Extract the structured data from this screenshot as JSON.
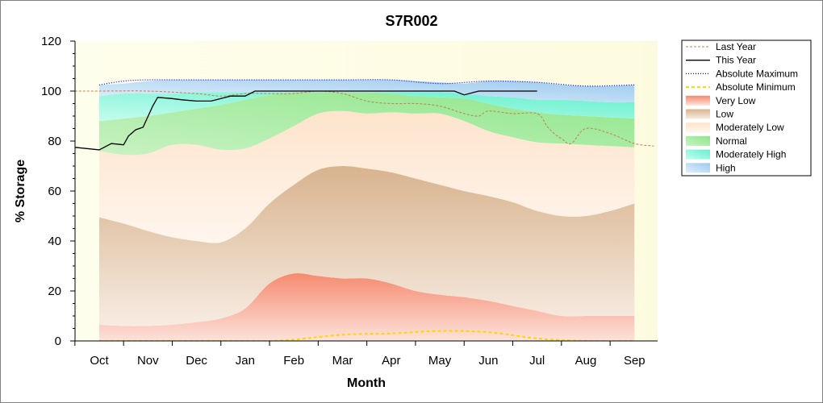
{
  "chart_data": {
    "type": "area",
    "title": "S7R002",
    "xlabel": "Month",
    "ylabel": "% Storage",
    "ylim": [
      0,
      120
    ],
    "yticks": [
      "0",
      "20",
      "40",
      "60",
      "80",
      "100",
      "120"
    ],
    "categories": [
      "Oct",
      "Nov",
      "Dec",
      "Jan",
      "Feb",
      "Mar",
      "Apr",
      "May",
      "Jun",
      "Jul",
      "Aug",
      "Sep"
    ],
    "grid": false,
    "legend_position": "right",
    "colors": {
      "very_low": "#f5856c",
      "low": "#d4b08c",
      "moderately_low": "#fde8d4",
      "normal": "#7ee07e",
      "moderately_high": "#66f2cc",
      "high": "#9cc8ee",
      "last_year": "#c0804f",
      "this_year": "#000000",
      "absolute_maximum": "#0000ff",
      "absolute_minimum": "#ffd700",
      "plot_bg": "#fdfde6"
    },
    "series": [
      {
        "name": "Last Year",
        "kind": "line",
        "style": "dashed",
        "x": [
          -0.5,
          0,
          1,
          2,
          2.5,
          3,
          3.5,
          4,
          4.5,
          5,
          5.5,
          6,
          6.5,
          7,
          7.5,
          7.8,
          8,
          8.5,
          9,
          9.2,
          9.35,
          9.5,
          9.7,
          10,
          10.5,
          11,
          11.4
        ],
        "values": [
          100,
          100,
          100,
          99,
          98,
          99,
          99,
          99,
          100,
          99,
          96,
          95,
          95,
          94,
          91,
          90,
          92,
          91,
          91,
          86,
          83,
          81,
          79,
          85,
          83,
          79,
          78
        ]
      },
      {
        "name": "This Year",
        "kind": "line",
        "style": "solid",
        "x": [
          -0.5,
          0,
          0.25,
          0.5,
          0.6,
          0.75,
          0.9,
          1.1,
          1.2,
          1.5,
          1.7,
          2,
          2.3,
          2.5,
          2.7,
          3,
          3.2,
          3.5,
          4,
          4.5,
          5,
          5.5,
          6,
          6.5,
          7,
          7.3,
          7.5,
          7.8,
          8,
          8.5,
          9
        ],
        "values": [
          77.5,
          76.5,
          79,
          78.5,
          82,
          84.5,
          85.5,
          94,
          97.5,
          97,
          96.5,
          96,
          96,
          97,
          98,
          98,
          100,
          100,
          100,
          100,
          100,
          100,
          100,
          100,
          100,
          100,
          98.5,
          100,
          100,
          100,
          100
        ]
      },
      {
        "name": "Absolute Maximum",
        "kind": "line",
        "style": "dotted",
        "x": [
          0,
          0.5,
          1,
          2,
          3,
          4,
          5,
          6,
          7,
          8,
          9,
          10,
          11
        ],
        "values": [
          102.5,
          104,
          104.5,
          104.5,
          104.5,
          104.5,
          104.5,
          104.5,
          103,
          104,
          103.5,
          102,
          102.5
        ]
      },
      {
        "name": "Absolute Minimum",
        "kind": "line",
        "style": "dashed",
        "x": [
          0,
          1,
          2,
          3,
          3.5,
          4,
          5,
          6,
          7,
          8,
          9,
          10,
          11
        ],
        "values": [
          0,
          0,
          0,
          0,
          0,
          0.5,
          2.5,
          3,
          4,
          3.5,
          1,
          0,
          0
        ]
      }
    ],
    "bands": {
      "x": [
        0,
        0.5,
        1,
        1.5,
        2,
        2.5,
        3,
        3.5,
        4,
        4.5,
        5,
        5.5,
        6,
        6.5,
        7,
        7.5,
        8,
        8.5,
        9,
        9.5,
        10,
        10.5,
        11
      ],
      "very_low": [
        6.5,
        6,
        6,
        6.5,
        7.5,
        9,
        13,
        23,
        27,
        26,
        25,
        25,
        23,
        20,
        18.5,
        17.5,
        16,
        14,
        12,
        10,
        10,
        10,
        10
      ],
      "low": [
        49.5,
        47,
        44,
        41.5,
        40,
        39.5,
        45,
        55,
        62.5,
        68.5,
        70,
        69,
        67.5,
        65,
        62.5,
        60,
        58,
        55.5,
        52,
        50,
        50,
        52,
        55
      ],
      "moderately_low": [
        76,
        74.5,
        75,
        78.5,
        78.5,
        76.5,
        77,
        81,
        86,
        91,
        92,
        91,
        91.5,
        91,
        91,
        88,
        84,
        81.5,
        79.5,
        79,
        78.5,
        78,
        77.5
      ],
      "normal": [
        88,
        89,
        90,
        91.5,
        93,
        94.5,
        96.5,
        98.5,
        99.5,
        99.5,
        99.5,
        99.5,
        99,
        98,
        97.5,
        97,
        95,
        93,
        91.5,
        90.5,
        90,
        89.5,
        89
      ],
      "moderately_high": [
        98,
        99,
        99,
        99,
        99.5,
        99.5,
        99.5,
        99.5,
        99.5,
        99.5,
        99.5,
        99.5,
        99.5,
        99.5,
        99.5,
        99,
        98,
        97.5,
        96.5,
        96.5,
        96,
        95.5,
        95.5
      ],
      "high": [
        102.5,
        103,
        104,
        104.5,
        104.5,
        104.5,
        104.5,
        104.5,
        104.5,
        104.5,
        104.5,
        104.5,
        104.5,
        104,
        103.5,
        103,
        104,
        104,
        103.5,
        102.5,
        102,
        102,
        102.5
      ]
    },
    "legend": [
      "Last Year",
      "This Year",
      "Absolute Maximum",
      "Absolute Minimum",
      "Very Low",
      "Low",
      "Moderately Low",
      "Normal",
      "Moderately High",
      "High"
    ]
  }
}
